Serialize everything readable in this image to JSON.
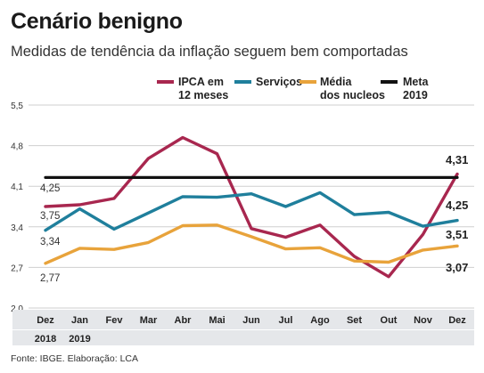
{
  "title": "Cenário benigno",
  "subtitle": "Medidas de tendência da inflação seguem bem comportadas",
  "source": "Fonte: IBGE. Elaboração: LCA",
  "chart_data": {
    "type": "line",
    "categories": [
      "Dez",
      "Jan",
      "Fev",
      "Mar",
      "Abr",
      "Mai",
      "Jun",
      "Jul",
      "Ago",
      "Set",
      "Out",
      "Nov",
      "Dez"
    ],
    "year_labels": [
      {
        "label": "2018",
        "index": 0
      },
      {
        "label": "2019",
        "index": 1
      }
    ],
    "yticks": [
      "5,5",
      "4,8",
      "4,1",
      "3,4",
      "2,7",
      "2,0"
    ],
    "ylim": [
      2.0,
      5.5
    ],
    "grid": true,
    "series": [
      {
        "name": "IPCA em 12 meses",
        "name_lines": [
          "IPCA em",
          "12 meses"
        ],
        "color": "#a8274f",
        "values": [
          3.75,
          3.78,
          3.89,
          4.58,
          4.94,
          4.66,
          3.37,
          3.22,
          3.43,
          2.89,
          2.54,
          3.27,
          4.31
        ]
      },
      {
        "name": "Serviços",
        "name_lines": [
          "Serviços"
        ],
        "color": "#1f7f9c",
        "values": [
          3.34,
          3.71,
          3.36,
          3.64,
          3.92,
          3.91,
          3.97,
          3.75,
          3.99,
          3.61,
          3.65,
          3.41,
          3.51
        ]
      },
      {
        "name": "Média dos nucleos",
        "name_lines": [
          "Média",
          "dos nucleos"
        ],
        "color": "#e8a33b",
        "values": [
          2.77,
          3.03,
          3.01,
          3.13,
          3.42,
          3.43,
          3.23,
          3.02,
          3.04,
          2.81,
          2.79,
          3.0,
          3.07
        ]
      },
      {
        "name": "Meta 2019",
        "name_lines": [
          "Meta",
          "2019"
        ],
        "color": "#111111",
        "values": [
          4.25,
          4.25,
          4.25,
          4.25,
          4.25,
          4.25,
          4.25,
          4.25,
          4.25,
          4.25,
          4.25,
          4.25,
          4.25
        ]
      }
    ],
    "data_labels": {
      "start": [
        {
          "text": "4,25",
          "series": 3
        },
        {
          "text": "3,75",
          "series": 0
        },
        {
          "text": "3,34",
          "series": 1
        },
        {
          "text": "2,77",
          "series": 2
        }
      ],
      "end": [
        {
          "text": "4,31",
          "series": 0
        },
        {
          "text": "4,25",
          "series": 3
        },
        {
          "text": "3,51",
          "series": 1
        },
        {
          "text": "3,07",
          "series": 2
        }
      ]
    }
  }
}
